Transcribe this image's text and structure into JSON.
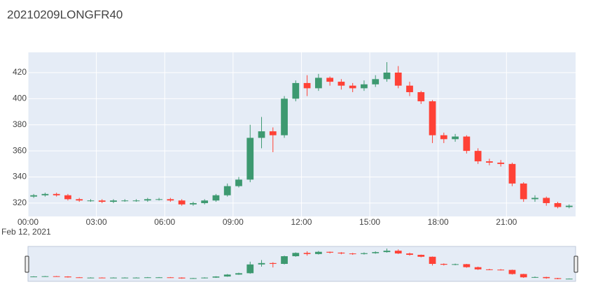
{
  "chart_data": {
    "type": "candlestick",
    "title": "20210209LONGFR40",
    "x_date_label": "Feb 12, 2021",
    "x": [
      "2021-02-12 00:00",
      "2021-02-12 00:30",
      "2021-02-12 01:00",
      "2021-02-12 01:30",
      "2021-02-12 02:00",
      "2021-02-12 02:30",
      "2021-02-12 03:00",
      "2021-02-12 03:30",
      "2021-02-12 04:00",
      "2021-02-12 04:30",
      "2021-02-12 05:00",
      "2021-02-12 05:30",
      "2021-02-12 06:00",
      "2021-02-12 06:30",
      "2021-02-12 07:00",
      "2021-02-12 07:30",
      "2021-02-12 08:00",
      "2021-02-12 08:30",
      "2021-02-12 09:00",
      "2021-02-12 09:30",
      "2021-02-12 10:00",
      "2021-02-12 10:30",
      "2021-02-12 11:00",
      "2021-02-12 11:30",
      "2021-02-12 12:00",
      "2021-02-12 12:30",
      "2021-02-12 13:00",
      "2021-02-12 13:30",
      "2021-02-12 14:00",
      "2021-02-12 14:30",
      "2021-02-12 15:00",
      "2021-02-12 15:30",
      "2021-02-12 16:00",
      "2021-02-12 16:30",
      "2021-02-12 17:00",
      "2021-02-12 17:30",
      "2021-02-12 18:00",
      "2021-02-12 18:30",
      "2021-02-12 19:00",
      "2021-02-12 19:30",
      "2021-02-12 20:00",
      "2021-02-12 20:30",
      "2021-02-12 21:00",
      "2021-02-12 21:30",
      "2021-02-12 22:00",
      "2021-02-12 22:30",
      "2021-02-12 23:00",
      "2021-02-12 23:30"
    ],
    "open": [
      325,
      326,
      327,
      326,
      323,
      322,
      322,
      321,
      322,
      322,
      322,
      323,
      323,
      322,
      319,
      320,
      322,
      326,
      333,
      338,
      370,
      375,
      372,
      400,
      412,
      408,
      416,
      413,
      410,
      408,
      411,
      415,
      420,
      410,
      405,
      398,
      372,
      369,
      371,
      360,
      352,
      351,
      350,
      335,
      323,
      324,
      320,
      317
    ],
    "high": [
      327,
      328,
      328,
      327,
      324,
      323,
      323,
      323,
      323,
      323,
      324,
      324,
      324,
      323,
      321,
      323,
      327,
      335,
      340,
      380,
      386,
      378,
      402,
      414,
      418,
      419,
      417,
      415,
      412,
      414,
      418,
      428,
      425,
      413,
      406,
      399,
      374,
      373,
      372,
      362,
      354,
      353,
      351,
      336,
      326,
      325,
      321,
      319
    ],
    "low": [
      324,
      325,
      325,
      322,
      321,
      321,
      320,
      320,
      321,
      321,
      321,
      322,
      321,
      318,
      318,
      319,
      321,
      325,
      332,
      336,
      362,
      359,
      370,
      398,
      402,
      406,
      410,
      407,
      405,
      406,
      409,
      413,
      408,
      402,
      396,
      366,
      366,
      367,
      358,
      350,
      349,
      348,
      333,
      321,
      321,
      318,
      316,
      316
    ],
    "close": [
      326,
      327,
      326,
      323,
      322,
      322,
      321,
      322,
      322,
      322,
      323,
      323,
      322,
      319,
      320,
      322,
      326,
      333,
      338,
      370,
      375,
      372,
      400,
      412,
      408,
      416,
      413,
      410,
      408,
      411,
      415,
      420,
      410,
      405,
      398,
      372,
      369,
      371,
      360,
      352,
      351,
      350,
      335,
      323,
      324,
      320,
      317,
      318
    ],
    "increasing_color": "#3d9970",
    "decreasing_color": "#ff4136",
    "xlim": [
      "2021-02-12 00:00",
      "2021-02-13 00:02"
    ],
    "xticks": [
      {
        "value": "2021-02-12 00:00",
        "label": "00:00"
      },
      {
        "value": "2021-02-12 03:00",
        "label": "03:00"
      },
      {
        "value": "2021-02-12 06:00",
        "label": "06:00"
      },
      {
        "value": "2021-02-12 09:00",
        "label": "09:00"
      },
      {
        "value": "2021-02-12 12:00",
        "label": "12:00"
      },
      {
        "value": "2021-02-12 15:00",
        "label": "15:00"
      },
      {
        "value": "2021-02-12 18:00",
        "label": "18:00"
      },
      {
        "value": "2021-02-12 21:00",
        "label": "21:00"
      }
    ],
    "ylim": [
      309.8,
      435.5
    ],
    "yticks": [
      320,
      340,
      360,
      380,
      400,
      420
    ],
    "grid": true,
    "rangeslider": true
  }
}
